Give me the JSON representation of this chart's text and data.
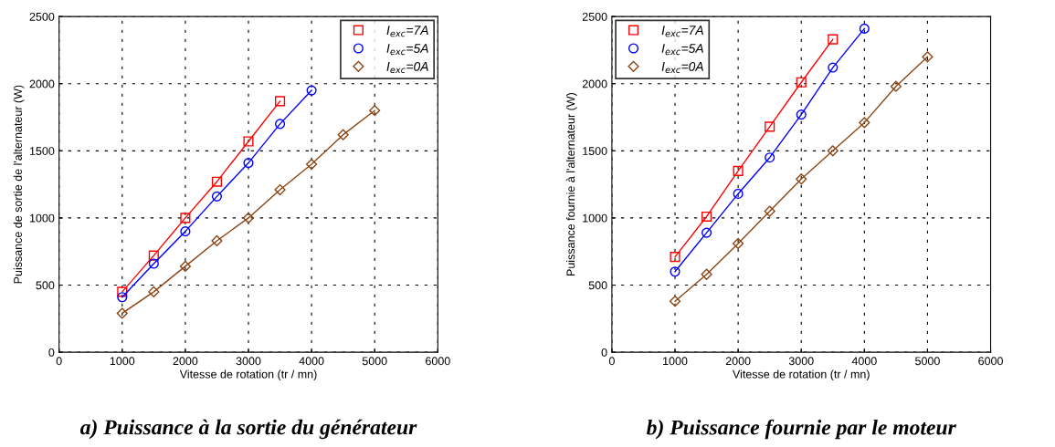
{
  "chart_data": [
    {
      "type": "line",
      "xlabel": "Vitesse de rotation (tr / mn)",
      "ylabel": "Puissance de sortie de l'alternateur (W)",
      "xlim": [
        0,
        6000
      ],
      "xticks": [
        0,
        1000,
        2000,
        3000,
        4000,
        5000,
        6000
      ],
      "ylim": [
        0,
        2500
      ],
      "yticks": [
        0,
        500,
        1000,
        1500,
        2000,
        2500
      ],
      "grid": true,
      "legend": "top right",
      "line_style": "solid",
      "annotations": [
        "a) Puissance à la sortie du générateur"
      ],
      "series": [
        {
          "name": "I$_{exc}$=7A",
          "color": "#ff0000",
          "marker": "square",
          "x": [
            1000,
            1500,
            2000,
            2500,
            3000,
            3500
          ],
          "values": [
            450,
            720,
            1000,
            1270,
            1570,
            1870
          ]
        },
        {
          "name": "I$_{exc}$=5A",
          "color": "#0000ff",
          "marker": "circle",
          "x": [
            1000,
            1500,
            2000,
            2500,
            3000,
            3500,
            4000
          ],
          "values": [
            410,
            660,
            900,
            1160,
            1410,
            1700,
            1950
          ]
        },
        {
          "name": "I$_{exc}$=0A",
          "color": "#8b4513",
          "marker": "diamond",
          "x": [
            1000,
            1500,
            2000,
            2500,
            3000,
            3500,
            4000,
            4500,
            5000
          ],
          "values": [
            290,
            450,
            640,
            830,
            1000,
            1210,
            1400,
            1620,
            1800
          ]
        }
      ]
    },
    {
      "type": "line",
      "xlabel": "Vitesse de rotation (tr / mn)",
      "ylabel": "Puissance fournie à l'alternateur (W)",
      "xlim": [
        0,
        6000
      ],
      "xticks": [
        0,
        1000,
        2000,
        3000,
        4000,
        5000,
        6000
      ],
      "ylim": [
        0,
        2500
      ],
      "yticks": [
        0,
        500,
        1000,
        1500,
        2000,
        2500
      ],
      "grid": true,
      "legend": "top left",
      "line_style": "solid",
      "annotations": [
        "b) Puissance fournie par le moteur"
      ],
      "series": [
        {
          "name": "I$_{exc}$=7A",
          "color": "#ff0000",
          "marker": "square",
          "x": [
            1000,
            1500,
            2000,
            2500,
            3000,
            3500
          ],
          "values": [
            710,
            1010,
            1350,
            1680,
            2010,
            2330
          ]
        },
        {
          "name": "I$_{exc}$=5A",
          "color": "#0000ff",
          "marker": "circle",
          "x": [
            1000,
            1500,
            2000,
            2500,
            3000,
            3500,
            4000
          ],
          "values": [
            600,
            890,
            1180,
            1450,
            1770,
            2120,
            2410
          ]
        },
        {
          "name": "I$_{exc}$=0A",
          "color": "#8b4513",
          "marker": "diamond",
          "x": [
            1000,
            1500,
            2000,
            2500,
            3000,
            3500,
            4000,
            4500,
            5000
          ],
          "values": [
            380,
            580,
            810,
            1050,
            1290,
            1500,
            1710,
            1980,
            2200
          ]
        }
      ]
    }
  ]
}
